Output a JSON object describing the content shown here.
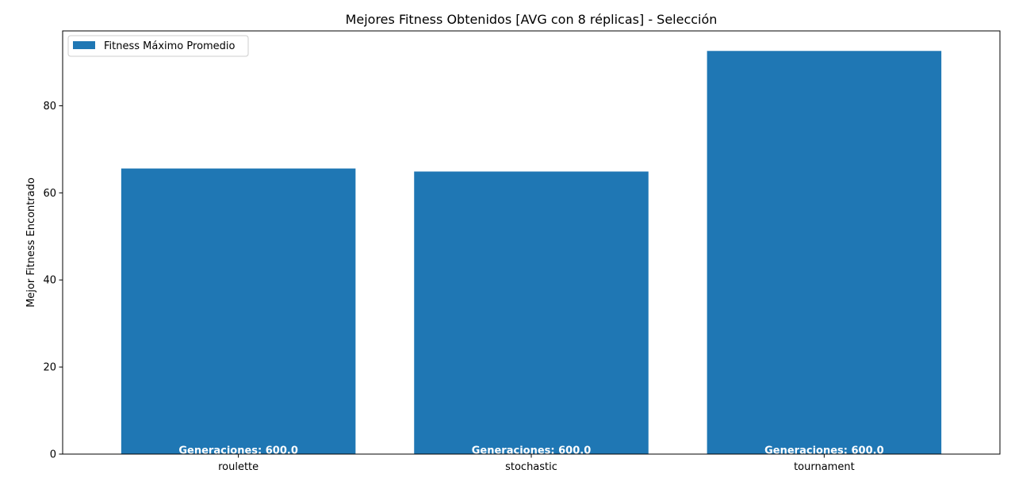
{
  "chart_data": {
    "type": "bar",
    "title": "Mejores Fitness Obtenidos [AVG con 8 réplicas] - Selección",
    "xlabel": "",
    "ylabel": "Mejor Fitness Encontrado",
    "categories": [
      "roulette",
      "stochastic",
      "tournament"
    ],
    "series": [
      {
        "name": "Fitness Máximo Promedio",
        "values": [
          65.6,
          64.9,
          92.6
        ]
      }
    ],
    "bar_labels": [
      "Generaciones: 600.0",
      "Generaciones: 600.0",
      "Generaciones: 600.0"
    ],
    "yticks": [
      0,
      20,
      40,
      60,
      80
    ],
    "ylim": [
      0,
      97.2
    ],
    "grid": false,
    "legend_position": "upper left",
    "colors": {
      "bar": "#1f77b4"
    }
  }
}
